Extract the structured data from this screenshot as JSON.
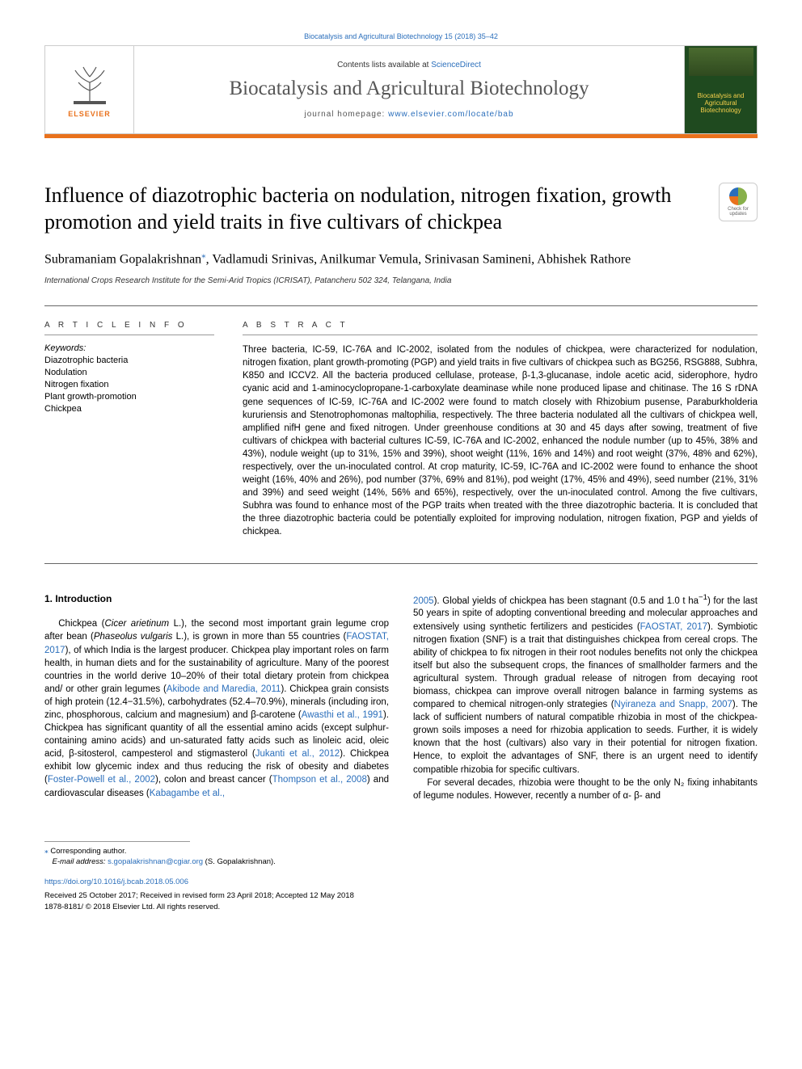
{
  "top_link": "Biocatalysis and Agricultural Biotechnology 15 (2018) 35–42",
  "header": {
    "contents_prefix": "Contents lists available at ",
    "contents_link": "ScienceDirect",
    "journal_title": "Biocatalysis and Agricultural Biotechnology",
    "homepage_prefix": "journal homepage: ",
    "homepage_link": "www.elsevier.com/locate/bab",
    "elsevier_label": "ELSEVIER",
    "cover_title": "Biocatalysis and Agricultural Biotechnology"
  },
  "check_updates_label": "Check for updates",
  "article_title": "Influence of diazotrophic bacteria on nodulation, nitrogen fixation, growth promotion and yield traits in five cultivars of chickpea",
  "authors_html": "Subramaniam Gopalakrishnan*, Vadlamudi Srinivas, Anilkumar Vemula, Srinivasan Samineni, Abhishek Rathore",
  "corr_symbol": "⁎",
  "affiliation": "International Crops Research Institute for the Semi-Arid Tropics (ICRISAT), Patancheru 502 324, Telangana, India",
  "article_info_label": "A R T I C L E  I N F O",
  "abstract_label": "A B S T R A C T",
  "keywords_label": "Keywords:",
  "keywords": [
    "Diazotrophic bacteria",
    "Nodulation",
    "Nitrogen fixation",
    "Plant growth-promotion",
    "Chickpea"
  ],
  "abstract_text": "Three bacteria, IC-59, IC-76A and IC-2002, isolated from the nodules of chickpea, were characterized for nodulation, nitrogen fixation, plant growth-promoting (PGP) and yield traits in five cultivars of chickpea such as BG256, RSG888, Subhra, K850 and ICCV2. All the bacteria produced cellulase, protease, β-1,3-glucanase, indole acetic acid, siderophore, hydro cyanic acid and 1-aminocyclopropane-1-carboxylate deaminase while none produced lipase and chitinase. The 16 S rDNA gene sequences of IC-59, IC-76A and IC-2002 were found to match closely with Rhizobium pusense, Paraburkholderia kururiensis and Stenotrophomonas maltophilia, respectively. The three bacteria nodulated all the cultivars of chickpea well, amplified nifH gene and fixed nitrogen. Under greenhouse conditions at 30 and 45 days after sowing, treatment of five cultivars of chickpea with bacterial cultures IC-59, IC-76A and IC-2002, enhanced the nodule number (up to 45%, 38% and 43%), nodule weight (up to 31%, 15% and 39%), shoot weight (11%, 16% and 14%) and root weight (37%, 48% and 62%), respectively, over the un-inoculated control. At crop maturity, IC-59, IC-76A and IC-2002 were found to enhance the shoot weight (16%, 40% and 26%), pod number (37%, 69% and 81%), pod weight (17%, 45% and 49%), seed number (21%, 31% and 39%) and seed weight (14%, 56% and 65%), respectively, over the un-inoculated control. Among the five cultivars, Subhra was found to enhance most of the PGP traits when treated with the three diazotrophic bacteria. It is concluded that the three diazotrophic bacteria could be potentially exploited for improving nodulation, nitrogen fixation, PGP and yields of chickpea.",
  "intro_heading": "1. Introduction",
  "col1_html": "Chickpea (<em>Cicer arietinum</em> L.), the second most important grain legume crop after bean (<em>Phaseolus vulgaris</em> L.), is grown in more than 55 countries (<span class='ref'>FAOSTAT, 2017</span>), of which India is the largest producer. Chickpea play important roles on farm health, in human diets and for the sustainability of agriculture. Many of the poorest countries in the world derive 10–20% of their total dietary protein from chickpea and/ or other grain legumes (<span class='ref'>Akibode and Maredia, 2011</span>). Chickpea grain consists of high protein (12.4−31.5%), carbohydrates (52.4–70.9%), minerals (including iron, zinc, phosphorous, calcium and magnesium) and β-carotene (<span class='ref'>Awasthi et al., 1991</span>). Chickpea has significant quantity of all the essential amino acids (except sulphur-containing amino acids) and un-saturated fatty acids such as linoleic acid, oleic acid, β-sitosterol, campesterol and stigmasterol (<span class='ref'>Jukanti et al., 2012</span>). Chickpea exhibit low glycemic index and thus reducing the risk of obesity and diabetes (<span class='ref'>Foster-Powell et al., 2002</span>), colon and breast cancer (<span class='ref'>Thompson et al., 2008</span>) and cardiovascular diseases (<span class='ref'>Kabagambe et al.,</span>",
  "col2_html": "<span class='ref'>2005</span>). Global yields of chickpea has been stagnant (0.5 and 1.0 t ha<sup>−1</sup>) for the last 50 years in spite of adopting conventional breeding and molecular approaches and extensively using synthetic fertilizers and pesticides (<span class='ref'>FAOSTAT, 2017</span>). Symbiotic nitrogen fixation (SNF) is a trait that distinguishes chickpea from cereal crops. The ability of chickpea to fix nitrogen in their root nodules benefits not only the chickpea itself but also the subsequent crops, the finances of smallholder farmers and the agricultural system. Through gradual release of nitrogen from decaying root biomass, chickpea can improve overall nitrogen balance in farming systems as compared to chemical nitrogen-only strategies (<span class='ref'>Nyiraneza and Snapp, 2007</span>). The lack of sufficient numbers of natural compatible rhizobia in most of the chickpea-grown soils imposes a need for rhizobia application to seeds. Further, it is widely known that the host (cultivars) also vary in their potential for nitrogen fixation. Hence, to exploit the advantages of SNF, there is an urgent need to identify compatible rhizobia for specific cultivars.",
  "col2_p2": "For several decades, rhizobia were thought to be the only N₂ fixing inhabitants of legume nodules. However, recently a number of α- β- and",
  "footnotes": {
    "corr_label": "Corresponding author.",
    "email_label": "E-mail address: ",
    "email": "s.gopalakrishnan@cgiar.org",
    "email_suffix": " (S. Gopalakrishnan).",
    "doi": "https://doi.org/10.1016/j.bcab.2018.05.006",
    "received": "Received 25 October 2017; Received in revised form 23 April 2018; Accepted 12 May 2018",
    "copyright": "1878-8181/ © 2018 Elsevier Ltd. All rights reserved."
  },
  "colors": {
    "link": "#2a6ebb",
    "accent": "#e9711c",
    "text": "#000000",
    "muted": "#555555",
    "border": "#cccccc"
  }
}
